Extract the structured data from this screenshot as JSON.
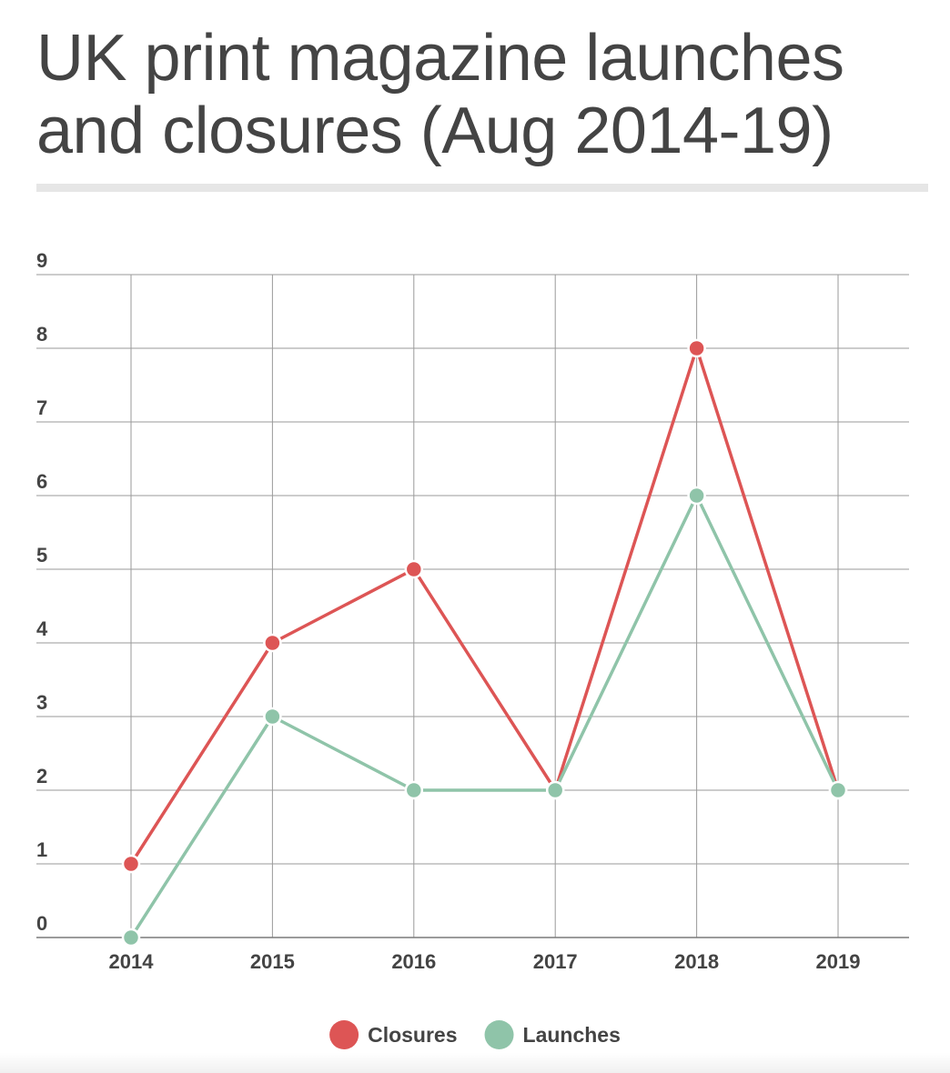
{
  "chart_data": {
    "type": "line",
    "title": "UK print magazine launches and closures (Aug 2014-19)",
    "x": [
      "2014",
      "2015",
      "2016",
      "2017",
      "2018",
      "2019"
    ],
    "series": [
      {
        "name": "Closures",
        "color": "#dd5555",
        "values": [
          1,
          4,
          5,
          2,
          8,
          2
        ]
      },
      {
        "name": "Launches",
        "color": "#8fc4a9",
        "values": [
          0,
          3,
          2,
          2,
          6,
          2
        ]
      }
    ],
    "yticks": [
      "0",
      "1",
      "2",
      "3",
      "4",
      "5",
      "6",
      "7",
      "8",
      "9"
    ],
    "ylim": [
      0,
      9
    ],
    "grid": true,
    "legend_position": "bottom-center",
    "xlabel": "",
    "ylabel": ""
  }
}
